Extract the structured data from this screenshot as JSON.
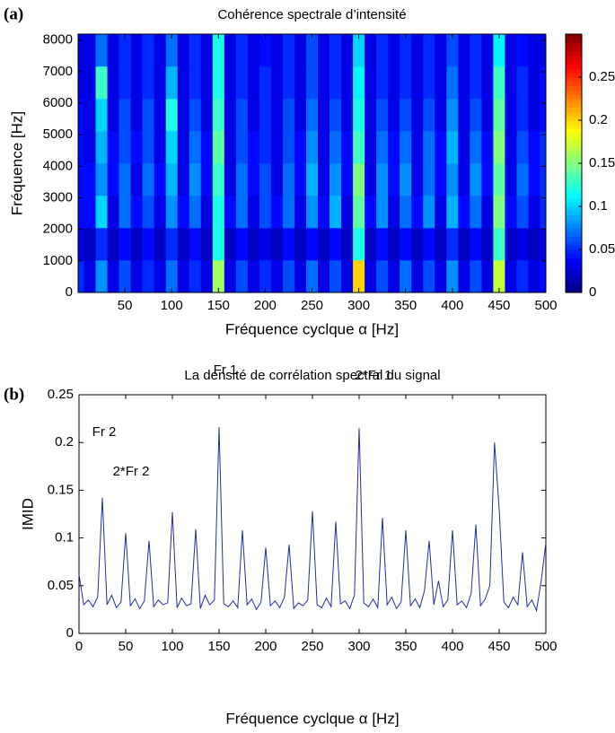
{
  "chart_data": [
    {
      "type": "heatmap",
      "panel_label": "(a)",
      "title": "Cohérence spectrale d’intensité",
      "xlabel": "Fréquence cyclque α [Hz]",
      "ylabel": "Fréquence [Hz]",
      "x": [
        0,
        12.5,
        25,
        37.5,
        50,
        62.5,
        75,
        87.5,
        100,
        112.5,
        125,
        137.5,
        150,
        162.5,
        175,
        187.5,
        200,
        212.5,
        225,
        237.5,
        250,
        262.5,
        275,
        287.5,
        300,
        312.5,
        325,
        337.5,
        350,
        362.5,
        375,
        387.5,
        400,
        412.5,
        425,
        437.5,
        450,
        462.5,
        475,
        487.5,
        500
      ],
      "y": [
        512,
        1536,
        2560,
        3584,
        4608,
        5632,
        6656,
        7680
      ],
      "values": [
        [
          0.05,
          0.03,
          0.08,
          0.03,
          0.06,
          0.03,
          0.05,
          0.03,
          0.07,
          0.03,
          0.05,
          0.03,
          0.16,
          0.03,
          0.06,
          0.03,
          0.05,
          0.03,
          0.06,
          0.03,
          0.07,
          0.03,
          0.06,
          0.03,
          0.2,
          0.03,
          0.06,
          0.03,
          0.07,
          0.03,
          0.06,
          0.03,
          0.08,
          0.03,
          0.06,
          0.03,
          0.17,
          0.03,
          0.05,
          0.03,
          0.04
        ],
        [
          0.03,
          0.02,
          0.05,
          0.02,
          0.04,
          0.02,
          0.04,
          0.02,
          0.05,
          0.02,
          0.04,
          0.02,
          0.12,
          0.02,
          0.04,
          0.02,
          0.03,
          0.02,
          0.04,
          0.02,
          0.04,
          0.02,
          0.04,
          0.02,
          0.12,
          0.02,
          0.04,
          0.02,
          0.04,
          0.02,
          0.04,
          0.02,
          0.05,
          0.02,
          0.04,
          0.02,
          0.13,
          0.02,
          0.03,
          0.02,
          0.03
        ],
        [
          0.04,
          0.04,
          0.1,
          0.03,
          0.07,
          0.04,
          0.06,
          0.03,
          0.08,
          0.04,
          0.07,
          0.03,
          0.12,
          0.04,
          0.07,
          0.03,
          0.06,
          0.04,
          0.07,
          0.03,
          0.08,
          0.04,
          0.09,
          0.03,
          0.14,
          0.04,
          0.08,
          0.03,
          0.07,
          0.04,
          0.08,
          0.03,
          0.09,
          0.04,
          0.07,
          0.03,
          0.15,
          0.04,
          0.06,
          0.03,
          0.05
        ],
        [
          0.04,
          0.04,
          0.08,
          0.04,
          0.07,
          0.03,
          0.07,
          0.04,
          0.09,
          0.03,
          0.08,
          0.04,
          0.13,
          0.03,
          0.07,
          0.04,
          0.06,
          0.03,
          0.07,
          0.04,
          0.09,
          0.03,
          0.08,
          0.04,
          0.15,
          0.03,
          0.08,
          0.04,
          0.08,
          0.03,
          0.07,
          0.04,
          0.08,
          0.03,
          0.08,
          0.04,
          0.14,
          0.03,
          0.07,
          0.04,
          0.05
        ],
        [
          0.04,
          0.03,
          0.09,
          0.04,
          0.06,
          0.04,
          0.06,
          0.03,
          0.1,
          0.03,
          0.07,
          0.04,
          0.14,
          0.03,
          0.06,
          0.04,
          0.05,
          0.03,
          0.06,
          0.04,
          0.08,
          0.03,
          0.07,
          0.04,
          0.13,
          0.03,
          0.07,
          0.04,
          0.07,
          0.03,
          0.07,
          0.04,
          0.09,
          0.03,
          0.07,
          0.04,
          0.15,
          0.03,
          0.06,
          0.04,
          0.05
        ],
        [
          0.04,
          0.03,
          0.1,
          0.03,
          0.06,
          0.03,
          0.06,
          0.03,
          0.12,
          0.03,
          0.06,
          0.03,
          0.13,
          0.03,
          0.06,
          0.03,
          0.05,
          0.03,
          0.06,
          0.03,
          0.07,
          0.03,
          0.06,
          0.03,
          0.12,
          0.03,
          0.06,
          0.03,
          0.06,
          0.03,
          0.06,
          0.03,
          0.08,
          0.03,
          0.06,
          0.03,
          0.14,
          0.03,
          0.05,
          0.03,
          0.04
        ],
        [
          0.03,
          0.03,
          0.13,
          0.03,
          0.05,
          0.03,
          0.05,
          0.03,
          0.09,
          0.03,
          0.05,
          0.03,
          0.12,
          0.03,
          0.05,
          0.03,
          0.05,
          0.03,
          0.05,
          0.03,
          0.06,
          0.03,
          0.05,
          0.03,
          0.11,
          0.03,
          0.05,
          0.03,
          0.05,
          0.03,
          0.05,
          0.03,
          0.07,
          0.03,
          0.05,
          0.03,
          0.13,
          0.03,
          0.05,
          0.03,
          0.04
        ],
        [
          0.03,
          0.03,
          0.07,
          0.03,
          0.05,
          0.03,
          0.05,
          0.03,
          0.07,
          0.03,
          0.05,
          0.03,
          0.12,
          0.03,
          0.05,
          0.03,
          0.04,
          0.03,
          0.05,
          0.03,
          0.06,
          0.03,
          0.05,
          0.03,
          0.1,
          0.03,
          0.05,
          0.03,
          0.05,
          0.03,
          0.05,
          0.03,
          0.06,
          0.03,
          0.05,
          0.03,
          0.11,
          0.03,
          0.04,
          0.03,
          0.03
        ]
      ],
      "xlim": [
        0,
        500
      ],
      "ylim": [
        0,
        8192
      ],
      "xticks": [
        50,
        100,
        150,
        200,
        250,
        300,
        350,
        400,
        450,
        500
      ],
      "yticks": [
        0,
        1000,
        2000,
        3000,
        4000,
        5000,
        6000,
        7000,
        8000
      ],
      "colormap": "jet",
      "clim": [
        0,
        0.3
      ],
      "cticks": [
        0,
        0.05,
        0.1,
        0.15,
        0.2,
        0.25
      ]
    },
    {
      "type": "line",
      "panel_label": "(b)",
      "title": "La densité de corrélation spectral du signal",
      "xlabel": "Fréquence cyclque α [Hz]",
      "ylabel": "IMID",
      "color": "#1f2f9a",
      "x": [
        0,
        5,
        10,
        15,
        20,
        25,
        30,
        35,
        40,
        45,
        50,
        55,
        60,
        65,
        70,
        75,
        80,
        85,
        90,
        95,
        100,
        105,
        110,
        115,
        120,
        125,
        130,
        135,
        140,
        145,
        150,
        155,
        160,
        165,
        170,
        175,
        180,
        185,
        190,
        195,
        200,
        205,
        210,
        215,
        220,
        225,
        230,
        235,
        240,
        245,
        250,
        255,
        260,
        265,
        270,
        275,
        280,
        285,
        290,
        295,
        300,
        305,
        310,
        315,
        320,
        325,
        330,
        335,
        340,
        345,
        350,
        355,
        360,
        365,
        370,
        375,
        380,
        385,
        390,
        395,
        400,
        405,
        410,
        415,
        420,
        425,
        430,
        435,
        440,
        445,
        450,
        455,
        460,
        465,
        470,
        475,
        480,
        485,
        490,
        495,
        500
      ],
      "values": [
        0.062,
        0.03,
        0.035,
        0.028,
        0.038,
        0.142,
        0.03,
        0.04,
        0.027,
        0.033,
        0.105,
        0.029,
        0.036,
        0.026,
        0.034,
        0.097,
        0.028,
        0.035,
        0.03,
        0.032,
        0.127,
        0.027,
        0.037,
        0.029,
        0.031,
        0.109,
        0.026,
        0.04,
        0.03,
        0.035,
        0.216,
        0.031,
        0.028,
        0.034,
        0.027,
        0.108,
        0.03,
        0.036,
        0.025,
        0.033,
        0.09,
        0.029,
        0.034,
        0.027,
        0.038,
        0.093,
        0.026,
        0.032,
        0.029,
        0.035,
        0.128,
        0.03,
        0.027,
        0.037,
        0.028,
        0.117,
        0.031,
        0.034,
        0.026,
        0.04,
        0.215,
        0.032,
        0.028,
        0.036,
        0.027,
        0.121,
        0.03,
        0.038,
        0.026,
        0.033,
        0.108,
        0.029,
        0.036,
        0.027,
        0.045,
        0.097,
        0.03,
        0.055,
        0.028,
        0.035,
        0.108,
        0.03,
        0.034,
        0.027,
        0.042,
        0.114,
        0.029,
        0.036,
        0.05,
        0.2,
        0.13,
        0.033,
        0.027,
        0.038,
        0.03,
        0.085,
        0.028,
        0.035,
        0.024,
        0.055,
        0.095
      ],
      "xlim": [
        0,
        500
      ],
      "ylim": [
        0,
        0.25
      ],
      "xticks": [
        0,
        50,
        100,
        150,
        200,
        250,
        300,
        350,
        400,
        450,
        500
      ],
      "yticks": [
        0,
        0.05,
        0.1,
        0.15,
        0.2,
        0.25
      ],
      "annotations": [
        "Fr 2",
        "2*Fr 2",
        "Fr 1",
        "2*Fr 1"
      ]
    }
  ]
}
